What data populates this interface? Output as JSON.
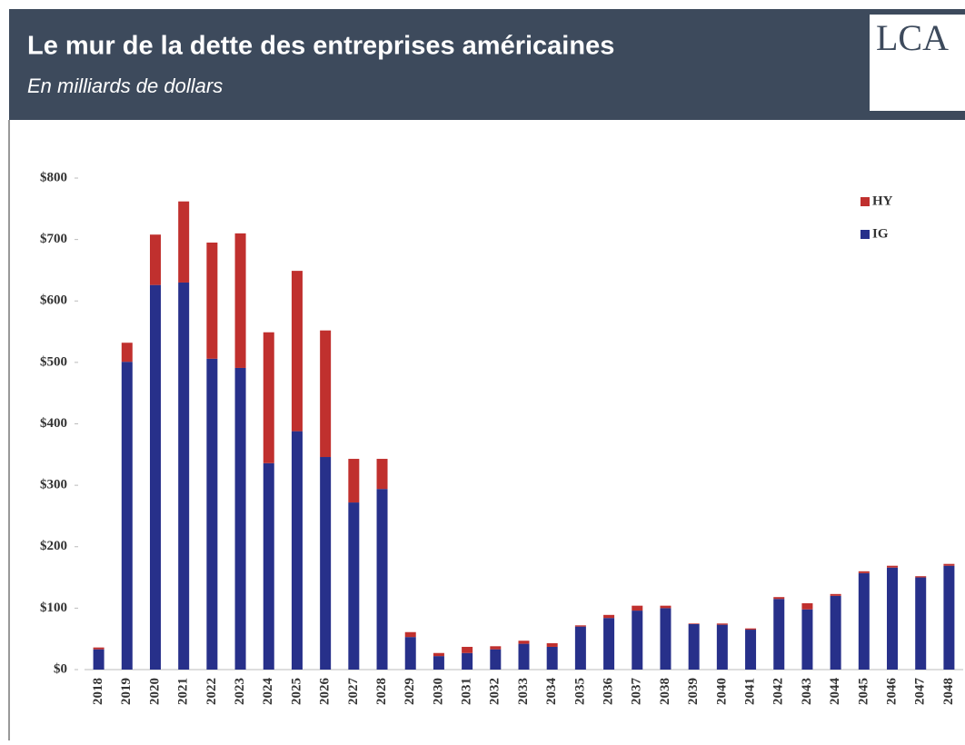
{
  "chart_data": {
    "type": "stacked_bar",
    "title": "Le mur de la dette des entreprises américaines",
    "subtitle": "En milliards de dollars",
    "logo": "LCA",
    "categories": [
      "2018",
      "2019",
      "2020",
      "2021",
      "2022",
      "2023",
      "2024",
      "2025",
      "2026",
      "2027",
      "2028",
      "2029",
      "2030",
      "2031",
      "2032",
      "2033",
      "2034",
      "2035",
      "2036",
      "2037",
      "2038",
      "2039",
      "2040",
      "2041",
      "2042",
      "2043",
      "2044",
      "2045",
      "2046",
      "2047",
      "2048"
    ],
    "series": [
      {
        "name": "IG",
        "color": "#27308a",
        "values": [
          33,
          501,
          626,
          630,
          506,
          491,
          336,
          388,
          346,
          272,
          294,
          53,
          22,
          27,
          33,
          42,
          37,
          70,
          84,
          96,
          100,
          74,
          73,
          65,
          115,
          98,
          120,
          157,
          166,
          150,
          169
        ]
      },
      {
        "name": "HY",
        "color": "#c0302e",
        "values": [
          3,
          31,
          82,
          132,
          189,
          219,
          213,
          261,
          206,
          71,
          49,
          8,
          5,
          10,
          5,
          5,
          6,
          2,
          5,
          8,
          4,
          1,
          2,
          2,
          3,
          10,
          3,
          3,
          3,
          2,
          3
        ]
      }
    ],
    "ylim": [
      0,
      800
    ],
    "yticks": [
      {
        "value": 0,
        "label": "$0"
      },
      {
        "value": 100,
        "label": "$100"
      },
      {
        "value": 200,
        "label": "$200"
      },
      {
        "value": 300,
        "label": "$300"
      },
      {
        "value": 400,
        "label": "$400"
      },
      {
        "value": 500,
        "label": "$500"
      },
      {
        "value": 600,
        "label": "$600"
      },
      {
        "value": 700,
        "label": "$700"
      },
      {
        "value": 800,
        "label": "$800"
      }
    ],
    "legend": "top-right"
  }
}
